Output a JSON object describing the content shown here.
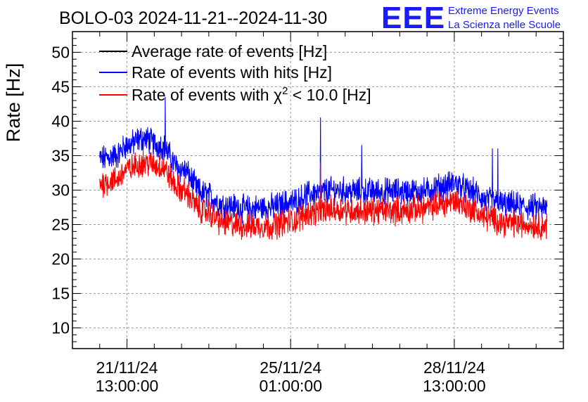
{
  "header": {
    "title": "BOLO-03 2024-11-21--2024-11-30",
    "logo_text": "EEE",
    "org_line1": "Extreme Energy Events",
    "org_line2": "La Scienza nelle Scuole"
  },
  "colors": {
    "average": "#000000",
    "hits": "#0000ff",
    "chi2": "#ff0000",
    "logo": "#1a1aff",
    "grid": "#9a9a9a"
  },
  "chart_data": {
    "type": "line",
    "title": "BOLO-03 2024-11-21--2024-11-30",
    "ylabel": "Rate [Hz]",
    "xlabel": "",
    "ylim": [
      7,
      53
    ],
    "y_ticks": [
      10,
      15,
      20,
      25,
      30,
      35,
      40,
      45,
      50
    ],
    "x_range_days": [
      0,
      9
    ],
    "x_ticks": [
      {
        "day": 1,
        "date": "21/11/24",
        "time": "13:00:00"
      },
      {
        "day": 4,
        "date": "25/11/24",
        "time": "01:00:00"
      },
      {
        "day": 7,
        "date": "28/11/24",
        "time": "13:00:00"
      }
    ],
    "data_range_days": [
      0.5,
      8.7
    ],
    "grid": true,
    "legend": [
      {
        "label": "Average rate of events [Hz]",
        "color": "#000000"
      },
      {
        "label": "Rate of events with hits [Hz]",
        "color": "#0000ff"
      },
      {
        "label_prefix": "Rate of events with ",
        "symbol": "χ",
        "superscript": "2",
        "label_suffix": " < 10.0 [Hz]",
        "color": "#ff0000"
      }
    ],
    "series": [
      {
        "name": "Rate of events with hits [Hz]",
        "color": "#0000ff",
        "x": [
          0.5,
          0.8,
          1.0,
          1.3,
          1.6,
          2.0,
          2.4,
          2.8,
          3.2,
          3.6,
          4.0,
          4.4,
          4.8,
          5.2,
          5.6,
          6.0,
          6.4,
          6.8,
          7.0,
          7.3,
          7.6,
          8.0,
          8.4,
          8.7
        ],
        "values": [
          34.5,
          35.0,
          36.5,
          37.5,
          36.5,
          33.0,
          29.5,
          27.8,
          27.3,
          27.5,
          28.2,
          29.5,
          30.0,
          29.8,
          29.8,
          29.8,
          29.8,
          30.5,
          31.0,
          29.8,
          28.5,
          27.8,
          27.5,
          27.3
        ],
        "spikes": [
          {
            "x": 1.7,
            "y": 43.5
          },
          {
            "x": 4.55,
            "y": 40.5
          },
          {
            "x": 5.3,
            "y": 36.5
          },
          {
            "x": 7.7,
            "y": 36.0
          },
          {
            "x": 7.8,
            "y": 36.0
          }
        ]
      },
      {
        "name": "Rate of events with χ2 < 10.0 [Hz]",
        "color": "#ff0000",
        "x": [
          0.5,
          0.8,
          1.0,
          1.3,
          1.6,
          2.0,
          2.4,
          2.8,
          3.2,
          3.6,
          4.0,
          4.4,
          4.8,
          5.2,
          5.6,
          6.0,
          6.4,
          6.8,
          7.0,
          7.3,
          7.6,
          8.0,
          8.4,
          8.7
        ],
        "values": [
          31.0,
          31.5,
          33.0,
          34.0,
          33.5,
          30.0,
          27.0,
          25.2,
          24.8,
          24.8,
          25.5,
          26.8,
          27.2,
          27.0,
          27.0,
          27.0,
          27.3,
          28.0,
          28.5,
          27.3,
          26.0,
          25.2,
          25.0,
          24.8
        ],
        "spikes": [
          {
            "x": 4.55,
            "y": 34.0
          }
        ]
      }
    ]
  }
}
